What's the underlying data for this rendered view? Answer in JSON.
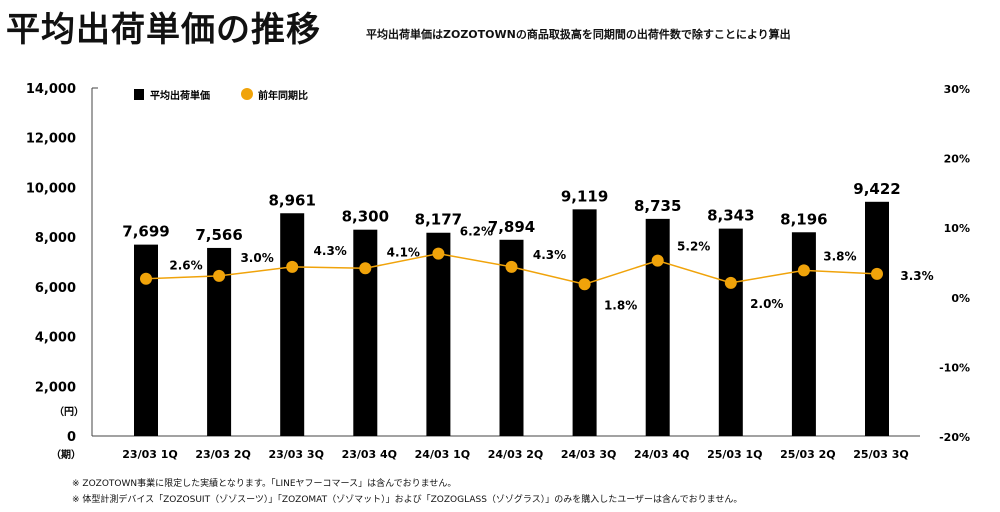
{
  "title": "平均出荷単価の推移",
  "subtitle": "平均出荷単価はZOZOTOWNの商品取扱高を同期間の出荷件数で除すことにより算出",
  "footnotes": [
    "※ ZOZOTOWN事業に限定した実績となります。「LINEヤフーコマース」は含んでおりません。",
    "※ 体型計測デバイス「ZOZOSUIT（ゾゾスーツ）」「ZOZOMAT（ゾゾマット）」および「ZOZOGLASS（ゾゾグラス）」のみを購入したユーザーは含んでおりません。"
  ],
  "chart_data": {
    "type": "bar+line",
    "categories": [
      "23/03 1Q",
      "23/03 2Q",
      "23/03 3Q",
      "23/03 4Q",
      "24/03 1Q",
      "24/03 2Q",
      "24/03 3Q",
      "24/03 4Q",
      "25/03 1Q",
      "25/03 2Q",
      "25/03 3Q"
    ],
    "x_prefix": "（期）",
    "y_unit": "（円）",
    "series": [
      {
        "name": "平均出荷単価",
        "type": "bar",
        "axis": "left",
        "color": "#000000",
        "values": [
          7699,
          7566,
          8961,
          8300,
          8177,
          7894,
          9119,
          8735,
          8343,
          8196,
          9422
        ],
        "labels": [
          "7,699",
          "7,566",
          "8,961",
          "8,300",
          "8,177",
          "7,894",
          "9,119",
          "8,735",
          "8,343",
          "8,196",
          "9,422"
        ]
      },
      {
        "name": "前年同期比",
        "type": "line",
        "axis": "right",
        "color": "#f0a30a",
        "values": [
          2.6,
          3.0,
          4.3,
          4.1,
          6.2,
          4.3,
          1.8,
          5.2,
          2.0,
          3.8,
          3.3
        ],
        "labels": [
          "2.6%",
          "3.0%",
          "4.3%",
          "4.1%",
          "6.2%",
          "4.3%",
          "1.8%",
          "5.2%",
          "2.0%",
          "3.8%",
          "3.3%"
        ]
      }
    ],
    "ylim_left": [
      0,
      14000
    ],
    "yticks_left": [
      "0",
      "2,000",
      "4,000",
      "6,000",
      "8,000",
      "10,000",
      "12,000",
      "14,000"
    ],
    "ylim_right": [
      -20,
      30
    ],
    "yticks_right": [
      "-20%",
      "-10%",
      "0%",
      "10%",
      "20%",
      "30%"
    ],
    "legend": "top-left",
    "grid": false
  }
}
